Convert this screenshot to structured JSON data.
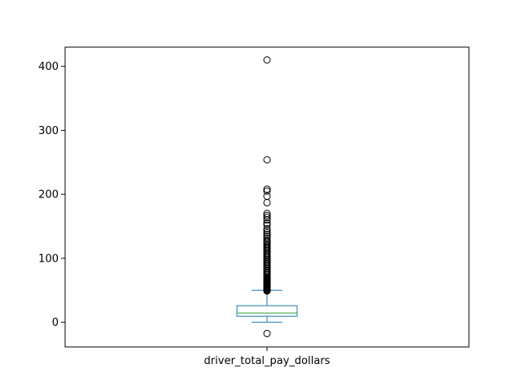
{
  "chart_data": {
    "type": "box",
    "category": "driver_total_pay_dollars",
    "yticks": [
      0,
      100,
      200,
      300,
      400
    ],
    "ylim": [
      -38.5,
      430
    ],
    "box": {
      "whisker_low": 0,
      "q1": 9.5,
      "median": 14.5,
      "q3": 26,
      "whisker_high": 50
    },
    "outliers": [
      -17.5,
      49,
      50,
      51,
      52,
      53,
      54,
      55,
      56,
      57,
      58,
      59,
      60,
      61,
      62,
      63,
      64,
      65,
      66,
      67,
      68,
      69,
      70,
      72,
      74,
      76,
      78,
      80,
      82,
      84,
      86,
      88,
      90,
      92,
      94,
      96,
      98,
      100,
      102,
      104,
      106,
      108,
      110,
      112,
      114,
      116,
      118,
      120,
      122,
      124,
      126,
      128,
      131,
      134,
      137,
      140,
      143,
      146,
      152,
      155,
      160,
      164,
      167,
      170,
      187,
      197,
      205,
      208,
      254,
      410
    ],
    "colors": {
      "box": "#1f77b4",
      "median": "#2ca02c",
      "outlier": "#000000",
      "axis": "#000000"
    },
    "grid": false
  }
}
